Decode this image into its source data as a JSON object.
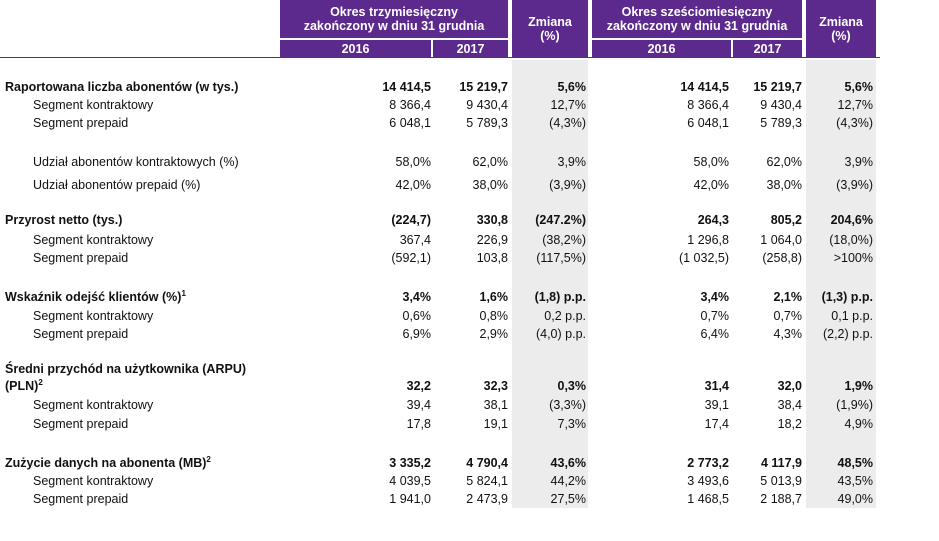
{
  "header": {
    "period3": "Okres trzymiesięczny zakończony w dniu 31 grudnia",
    "change": "Zmiana (%)",
    "period6": "Okres sześciomiesięczny zakończony w dniu 31 grudnia",
    "year2016": "2016",
    "year2017": "2017"
  },
  "rows": [
    {
      "label": "Raportowana liczba abonentów (w tys.)",
      "bold": true,
      "sub": false,
      "sup": "",
      "values": [
        "14 414,5",
        "15 219,7",
        "5,6%",
        "14 414,5",
        "15 219,7",
        "5,6%"
      ]
    },
    {
      "label": "Segment kontraktowy",
      "bold": false,
      "sub": true,
      "sup": "",
      "values": [
        "8 366,4",
        "9 430,4",
        "12,7%",
        "8 366,4",
        "9 430,4",
        "12,7%"
      ]
    },
    {
      "label": "Segment prepaid",
      "bold": false,
      "sub": true,
      "sup": "",
      "values": [
        "6 048,1",
        "5 789,3",
        "(4,3%)",
        "6 048,1",
        "5 789,3",
        "(4,3%)"
      ]
    },
    {
      "label": "Udział abonentów kontraktowych (%)",
      "bold": false,
      "sub": true,
      "sup": "",
      "values": [
        "58,0%",
        "62,0%",
        "3,9%",
        "58,0%",
        "62,0%",
        "3,9%"
      ]
    },
    {
      "label": "Udział abonentów prepaid (%)",
      "bold": false,
      "sub": true,
      "sup": "",
      "values": [
        "42,0%",
        "38,0%",
        "(3,9%)",
        "42,0%",
        "38,0%",
        "(3,9%)"
      ]
    },
    {
      "label": "Przyrost netto (tys.)",
      "bold": true,
      "sub": false,
      "sup": "",
      "values": [
        "(224,7)",
        "330,8",
        "(247.2%)",
        "264,3",
        "805,2",
        "204,6%"
      ]
    },
    {
      "label": "Segment kontraktowy",
      "bold": false,
      "sub": true,
      "sup": "",
      "values": [
        "367,4",
        "226,9",
        "(38,2%)",
        "1 296,8",
        "1 064,0",
        "(18,0%)"
      ]
    },
    {
      "label": "Segment prepaid",
      "bold": false,
      "sub": true,
      "sup": "",
      "values": [
        "(592,1)",
        "103,8",
        "(117,5%)",
        "(1 032,5)",
        "(258,8)",
        ">100%"
      ]
    },
    {
      "label": "Wskaźnik odejść klientów (%)",
      "bold": true,
      "sub": false,
      "sup": "1",
      "values": [
        "3,4%",
        "1,6%",
        "(1,8) p.p.",
        "3,4%",
        "2,1%",
        "(1,3) p.p."
      ]
    },
    {
      "label": "Segment kontraktowy",
      "bold": false,
      "sub": true,
      "sup": "",
      "values": [
        "0,6%",
        "0,8%",
        "0,2 p.p.",
        "0,7%",
        "0,7%",
        "0,1 p.p."
      ]
    },
    {
      "label": "Segment prepaid",
      "bold": false,
      "sub": true,
      "sup": "",
      "values": [
        "6,9%",
        "2,9%",
        "(4,0) p.p.",
        "6,4%",
        "4,3%",
        "(2,2) p.p."
      ]
    },
    {
      "label": "Średni przychód na użytkownika (ARPU)",
      "bold": true,
      "sub": false,
      "sup": "",
      "values": [
        "",
        "",
        "",
        "",
        "",
        ""
      ]
    },
    {
      "label": "(PLN)",
      "bold": true,
      "sub": false,
      "sup": "2",
      "values": [
        "32,2",
        "32,3",
        "0,3%",
        "31,4",
        "32,0",
        "1,9%"
      ]
    },
    {
      "label": "Segment kontraktowy",
      "bold": false,
      "sub": true,
      "sup": "",
      "values": [
        "39,4",
        "38,1",
        "(3,3%)",
        "39,1",
        "38,4",
        "(1,9%)"
      ]
    },
    {
      "label": "Segment prepaid",
      "bold": false,
      "sub": true,
      "sup": "",
      "values": [
        "17,8",
        "19,1",
        "7,3%",
        "17,4",
        "18,2",
        "4,9%"
      ]
    },
    {
      "label": "Zużycie danych na abonenta (MB)",
      "bold": true,
      "sub": false,
      "sup": "2",
      "values": [
        "3 335,2",
        "4 790,4",
        "43,6%",
        "2 773,2",
        "4 117,9",
        "48,5%"
      ]
    },
    {
      "label": "Segment kontraktowy",
      "bold": false,
      "sub": true,
      "sup": "",
      "values": [
        "4 039,5",
        "5 824,1",
        "44,2%",
        "3 493,6",
        "5 013,9",
        "43,5%"
      ]
    },
    {
      "label": "Segment prepaid",
      "bold": false,
      "sub": true,
      "sup": "",
      "values": [
        "1 941,0",
        "2 473,9",
        "27,5%",
        "1 468,5",
        "2 188,7",
        "49,0%"
      ]
    }
  ]
}
